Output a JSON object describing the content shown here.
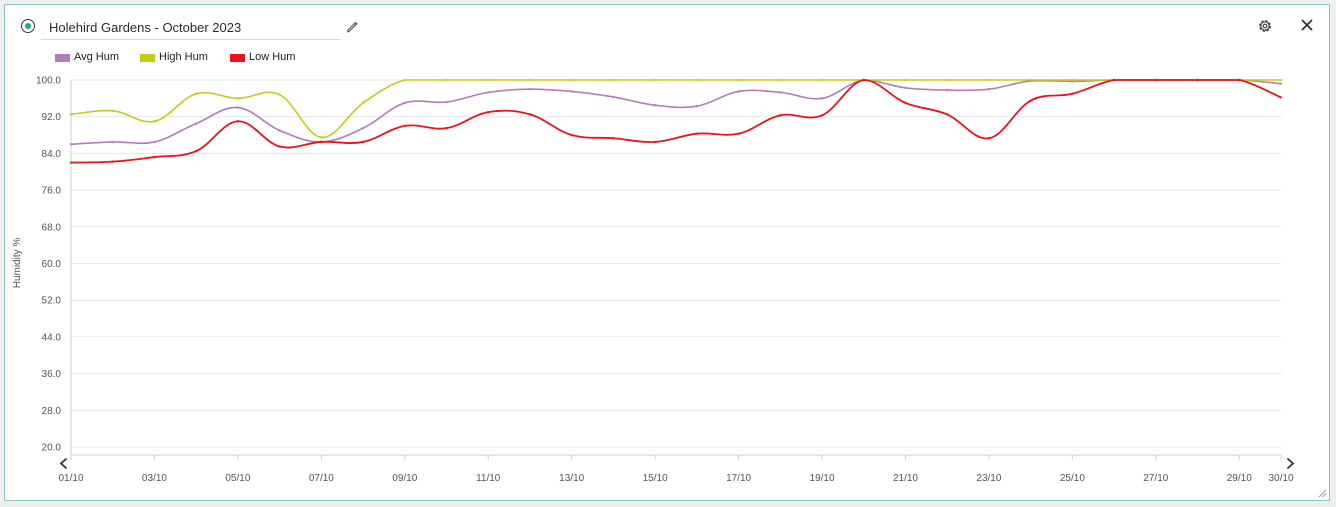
{
  "widget": {
    "title": "Holehird Gardens - October 2023",
    "status_color": "#1faa8e",
    "border_color": "#8fc5c2",
    "icons": {
      "status": "status-dot-icon",
      "edit": "pencil-icon",
      "settings": "gear-icon",
      "close": "close-icon",
      "prev": "chevron-left-icon",
      "next": "chevron-right-icon",
      "resize": "resize-handle-icon"
    }
  },
  "chart_data": {
    "type": "line",
    "title": "",
    "xlabel": "",
    "ylabel": "Humidity %",
    "ylim": [
      20,
      100
    ],
    "yticks": [
      "20.0",
      "28.0",
      "36.0",
      "44.0",
      "52.0",
      "60.0",
      "68.0",
      "76.0",
      "84.0",
      "92.0",
      "100.0"
    ],
    "x": [
      "01/10",
      "02/10",
      "03/10",
      "04/10",
      "05/10",
      "06/10",
      "07/10",
      "08/10",
      "09/10",
      "10/10",
      "11/10",
      "12/10",
      "13/10",
      "14/10",
      "15/10",
      "16/10",
      "17/10",
      "18/10",
      "19/10",
      "20/10",
      "21/10",
      "22/10",
      "23/10",
      "24/10",
      "25/10",
      "26/10",
      "27/10",
      "28/10",
      "29/10",
      "30/10"
    ],
    "xticks": [
      "01/10",
      "03/10",
      "05/10",
      "07/10",
      "09/10",
      "11/10",
      "13/10",
      "15/10",
      "17/10",
      "19/10",
      "21/10",
      "23/10",
      "25/10",
      "27/10",
      "29/10",
      "30/10"
    ],
    "grid": "horizontal",
    "legend_position": "top-left",
    "series": [
      {
        "name": "Avg Hum",
        "color": "#b07cba",
        "values": [
          86,
          86.5,
          86.5,
          90.5,
          94,
          89,
          86.5,
          89.5,
          95,
          95.2,
          97.3,
          98,
          97.5,
          96.3,
          94.5,
          94.3,
          97.5,
          97.3,
          96,
          100,
          98.3,
          97.8,
          98,
          99.8,
          99.7,
          100,
          100,
          100,
          100,
          99.2
        ]
      },
      {
        "name": "High Hum",
        "color": "#c8c81a",
        "values": [
          92.5,
          93.3,
          91,
          97,
          96,
          96.8,
          87.5,
          95,
          100,
          100,
          100,
          100,
          100,
          100,
          100,
          100,
          100,
          100,
          100,
          100,
          100,
          100,
          100,
          100,
          100,
          100,
          100,
          100,
          100,
          100
        ]
      },
      {
        "name": "Low Hum",
        "color": "#e8141c",
        "values": [
          82,
          82.2,
          83.2,
          84.5,
          91,
          85.5,
          86.5,
          86.5,
          90,
          89.5,
          93,
          92.5,
          88,
          87.3,
          86.5,
          88.3,
          88.3,
          92.3,
          92.3,
          100,
          95,
          92.5,
          87.3,
          95.5,
          97,
          100,
          100,
          100,
          100,
          96.2
        ]
      }
    ]
  }
}
